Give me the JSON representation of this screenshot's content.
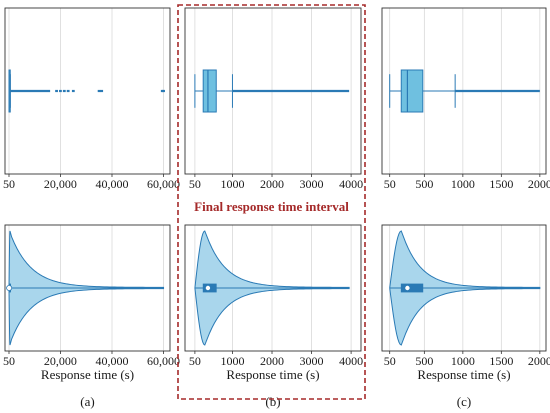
{
  "highlight_label": "Final response time interval",
  "colors": {
    "box_fill": "#6fc0e0",
    "line": "#2a7ab5",
    "violin_fill": "#a9d6ec",
    "highlight": "#a52a2a",
    "grid": "#d9d9d9"
  },
  "chart_data": [
    {
      "id": "a",
      "caption": "(a)",
      "type": "boxplot",
      "xlim": [
        -1500,
        62500
      ],
      "ticks": [
        50,
        20000,
        40000,
        60000
      ],
      "tick_labels": [
        "50",
        "20,000",
        "40,000",
        "60,000"
      ],
      "xlabel": "",
      "grid": true,
      "box": {
        "whisker_low": 50,
        "q1": 70,
        "median": 110,
        "q3": 260,
        "whisker_high": 560
      },
      "outliers": {
        "dense_from": 560,
        "dense_to": 16000,
        "sparse": [
          18500,
          20000,
          21500,
          23000,
          25000,
          35000,
          36000,
          59500,
          60000
        ]
      }
    },
    {
      "id": "a",
      "caption": "(a)",
      "type": "violin",
      "xlim": [
        -1500,
        62500
      ],
      "ticks": [
        50,
        20000,
        40000,
        60000
      ],
      "tick_labels": [
        "50",
        "20,000",
        "40,000",
        "60,000"
      ],
      "xlabel": "Response time (s)",
      "grid": true,
      "violin": {
        "min": 50,
        "peak": 100,
        "max": 60000
      },
      "median": 110,
      "box": {
        "q1": 70,
        "q3": 260
      }
    },
    {
      "id": "b",
      "caption": "(b)",
      "type": "boxplot",
      "xlim": [
        -200,
        4250
      ],
      "ticks": [
        50,
        1000,
        2000,
        3000,
        4000
      ],
      "tick_labels": [
        "50",
        "1000",
        "2000",
        "3000",
        "4000"
      ],
      "xlabel": "",
      "grid": true,
      "box": {
        "whisker_low": 50,
        "q1": 260,
        "median": 380,
        "q3": 590,
        "whisker_high": 1000
      },
      "outliers": {
        "dense_from": 1000,
        "dense_to": 3950,
        "sparse": []
      }
    },
    {
      "id": "b",
      "caption": "(b)",
      "type": "violin",
      "xlim": [
        -200,
        4250
      ],
      "ticks": [
        50,
        1000,
        2000,
        3000,
        4000
      ],
      "tick_labels": [
        "50",
        "1000",
        "2000",
        "3000",
        "4000"
      ],
      "xlabel": "Response time (s)",
      "grid": true,
      "violin": {
        "min": 50,
        "peak": 300,
        "max": 3950
      },
      "median": 380,
      "box": {
        "q1": 260,
        "q3": 590
      }
    },
    {
      "id": "c",
      "caption": "(c)",
      "type": "boxplot",
      "xlim": [
        -50,
        2080
      ],
      "ticks": [
        50,
        500,
        1000,
        1500,
        2000
      ],
      "tick_labels": [
        "50",
        "500",
        "1000",
        "1500",
        "2000"
      ],
      "xlabel": "",
      "grid": true,
      "box": {
        "whisker_low": 50,
        "q1": 200,
        "median": 280,
        "q3": 480,
        "whisker_high": 900
      },
      "outliers": {
        "dense_from": 900,
        "dense_to": 2000,
        "sparse": []
      }
    },
    {
      "id": "c",
      "caption": "(c)",
      "type": "violin",
      "xlim": [
        -50,
        2080
      ],
      "ticks": [
        50,
        500,
        1000,
        1500,
        2000
      ],
      "tick_labels": [
        "50",
        "500",
        "1000",
        "1500",
        "2000"
      ],
      "xlabel": "Response time (s)",
      "grid": true,
      "violin": {
        "min": 50,
        "peak": 200,
        "max": 2000
      },
      "median": 280,
      "box": {
        "q1": 200,
        "q3": 480
      }
    }
  ]
}
